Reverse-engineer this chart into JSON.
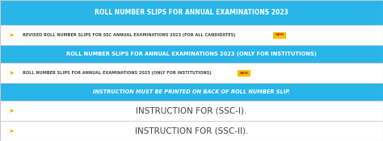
{
  "bg_color": "#f2f2f2",
  "header_bg": "#29b5e8",
  "row_bg": "#ffffff",
  "instruction_header_bg": "#29b5e8",
  "border_color": "#c8c8c8",
  "header_text_color": "#ffffff",
  "row_text_color": "#444444",
  "instruction_header_text_color": "#ffffff",
  "row1_header": "ROLL NUMBER SLIPS FOR ANNUAL EXAMINATIONS 2023",
  "row2_text": "REVISED ROLL NUMBER SLIPS FOR SSC ANNUAL EXAMINATIONS 2023 (FOR ALL CANDIDATES)",
  "row3_header": "ROLL NUMBER SLIPS FOR ANNUAL EXAMINATIONS 2023 (ONLY FOR INSTITUTIONS)",
  "row4_text": "ROLL NUMBER SLIPS FOR ANNUAL EXAMINATIONS 2023 (ONLY FOR INSTITUTIONS)",
  "row5_header": "INSTRUCTION MUST BE PRINTED ON BACK OF ROLL NUMBER SLIP.",
  "row6_text": "INSTRUCTION FOR (SSC-I).",
  "row7_text": "INSTRUCTION FOR (SSC-II).",
  "icon_color": "#f0b000",
  "new_badge_bg": "#f0c000",
  "new_badge_text_color": "#cc2200",
  "figw": 4.74,
  "figh": 1.75,
  "dpi": 100
}
